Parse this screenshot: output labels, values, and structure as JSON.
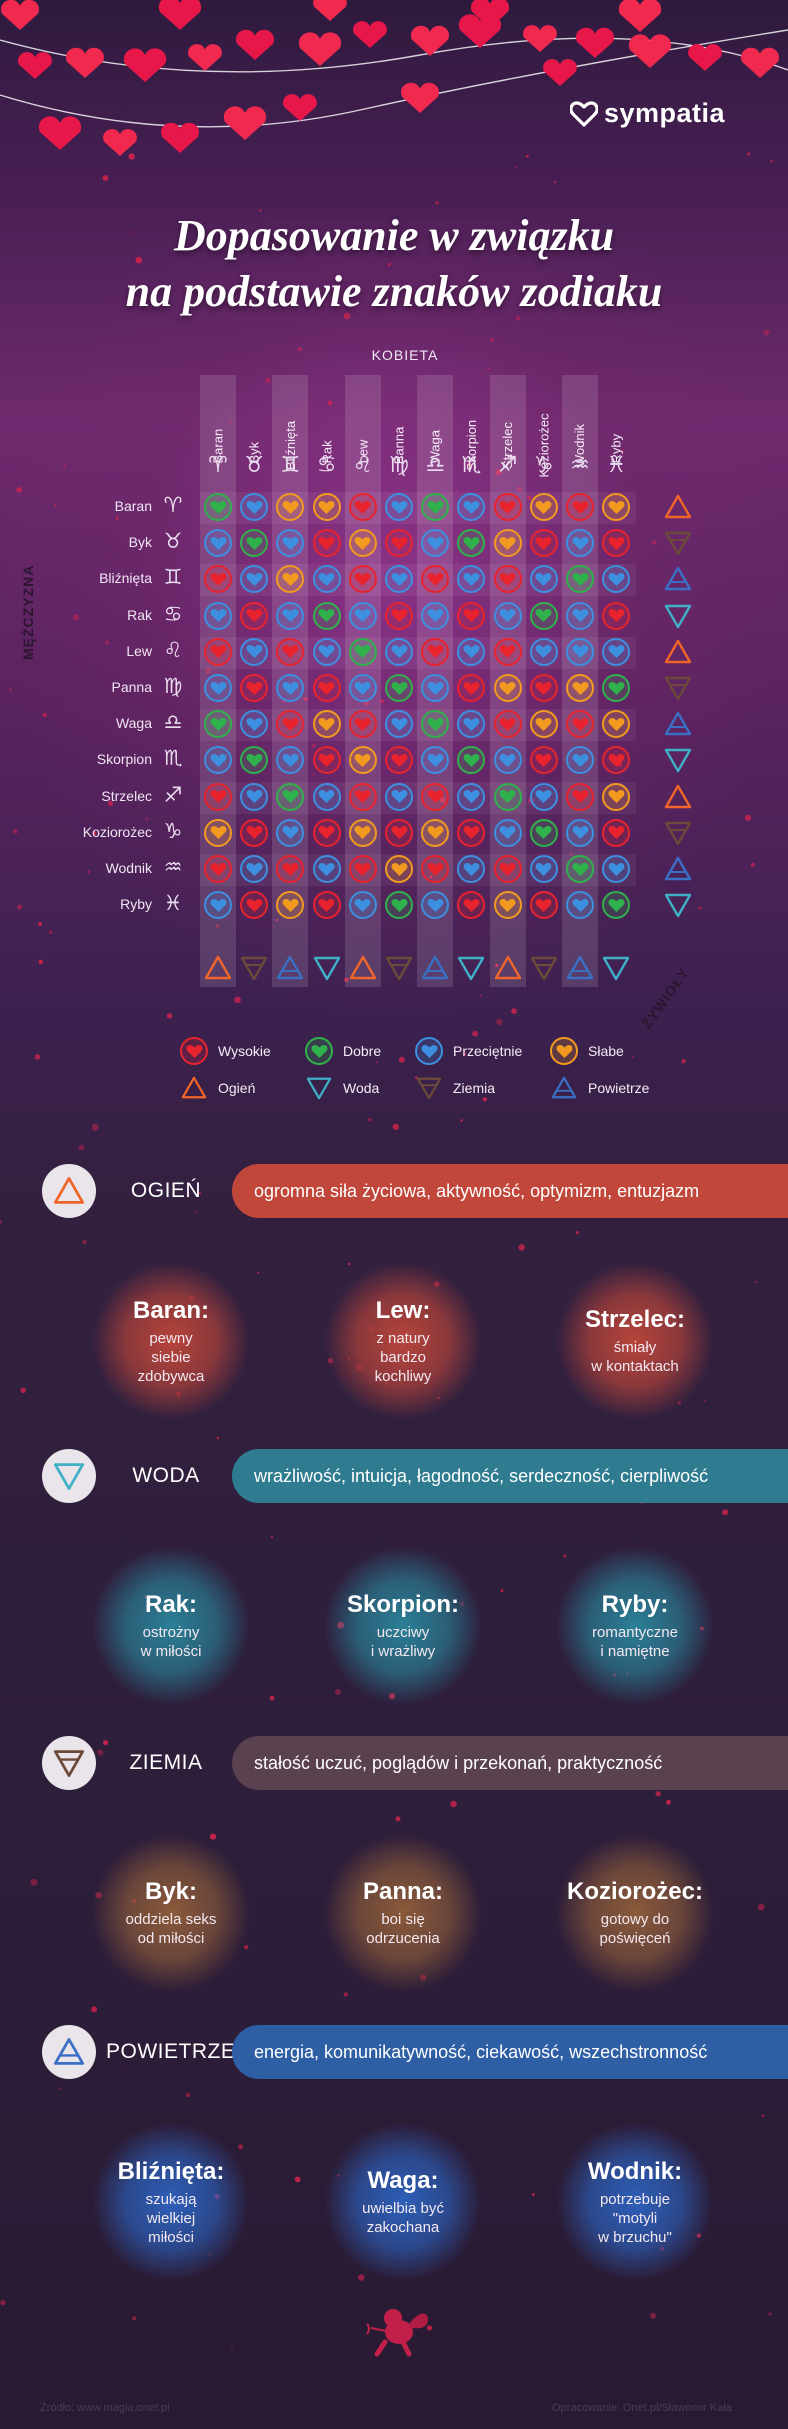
{
  "brand": {
    "name": "sympatia"
  },
  "title": {
    "line1": "Dopasowanie w związku",
    "line2": "na podstawie znaków zodiaku"
  },
  "matrix": {
    "women_label": "KOBIETA",
    "men_label": "MĘŻCZYZNA",
    "elements_label": "ŻYWIOŁY",
    "signs": [
      {
        "name": "Baran",
        "symbol": "♈",
        "element": "ogien"
      },
      {
        "name": "Byk",
        "symbol": "♉",
        "element": "ziemia"
      },
      {
        "name": "Bliźnięta",
        "symbol": "♊",
        "element": "powietrze"
      },
      {
        "name": "Rak",
        "symbol": "♋",
        "element": "woda"
      },
      {
        "name": "Lew",
        "symbol": "♌",
        "element": "ogien"
      },
      {
        "name": "Panna",
        "symbol": "♍",
        "element": "ziemia"
      },
      {
        "name": "Waga",
        "symbol": "♎",
        "element": "powietrze"
      },
      {
        "name": "Skorpion",
        "symbol": "♏",
        "element": "woda"
      },
      {
        "name": "Strzelec",
        "symbol": "♐",
        "element": "ogien"
      },
      {
        "name": "Koziorożec",
        "symbol": "♑",
        "element": "ziemia"
      },
      {
        "name": "Wodnik",
        "symbol": "♒",
        "element": "powietrze"
      },
      {
        "name": "Ryby",
        "symbol": "♓",
        "element": "woda"
      }
    ],
    "grid": [
      [
        "G",
        "B",
        "O",
        "O",
        "R",
        "B",
        "G",
        "B",
        "R",
        "O",
        "R",
        "O"
      ],
      [
        "B",
        "G",
        "B",
        "R",
        "O",
        "R",
        "B",
        "G",
        "O",
        "R",
        "B",
        "R"
      ],
      [
        "R",
        "B",
        "O",
        "B",
        "R",
        "B",
        "R",
        "B",
        "R",
        "B",
        "G",
        "B"
      ],
      [
        "B",
        "R",
        "B",
        "G",
        "B",
        "R",
        "B",
        "R",
        "B",
        "G",
        "B",
        "R"
      ],
      [
        "R",
        "B",
        "R",
        "B",
        "G",
        "B",
        "R",
        "B",
        "R",
        "B",
        "B",
        "B"
      ],
      [
        "B",
        "R",
        "B",
        "R",
        "B",
        "G",
        "B",
        "R",
        "O",
        "R",
        "O",
        "G"
      ],
      [
        "G",
        "B",
        "R",
        "O",
        "R",
        "B",
        "G",
        "B",
        "R",
        "O",
        "R",
        "O"
      ],
      [
        "B",
        "G",
        "B",
        "R",
        "O",
        "R",
        "B",
        "G",
        "B",
        "R",
        "B",
        "R"
      ],
      [
        "R",
        "B",
        "G",
        "B",
        "R",
        "B",
        "R",
        "B",
        "G",
        "B",
        "R",
        "O"
      ],
      [
        "O",
        "R",
        "B",
        "R",
        "O",
        "R",
        "O",
        "R",
        "B",
        "G",
        "B",
        "R"
      ],
      [
        "R",
        "B",
        "R",
        "B",
        "R",
        "O",
        "R",
        "B",
        "R",
        "B",
        "G",
        "B"
      ],
      [
        "B",
        "R",
        "O",
        "R",
        "B",
        "G",
        "B",
        "R",
        "O",
        "R",
        "B",
        "G"
      ]
    ]
  },
  "legend": {
    "levels": [
      {
        "key": "R",
        "label": "Wysokie",
        "color": "#e8232e"
      },
      {
        "key": "G",
        "label": "Dobre",
        "color": "#2fb24b"
      },
      {
        "key": "B",
        "label": "Przeciętnie",
        "color": "#3d8fe0"
      },
      {
        "key": "O",
        "label": "Słabe",
        "color": "#f29a1f"
      }
    ],
    "elements": [
      {
        "key": "ogien",
        "label": "Ogień",
        "color": "#f0652a"
      },
      {
        "key": "woda",
        "label": "Woda",
        "color": "#3fb0c6"
      },
      {
        "key": "ziemia",
        "label": "Ziemia",
        "color": "#6b4a3a"
      },
      {
        "key": "powietrze",
        "label": "Powietrze",
        "color": "#3a6fc4"
      }
    ]
  },
  "sections": [
    {
      "name": "OGIEŃ",
      "element": "ogien",
      "traits": "ogromna siła życiowa, aktywność, optymizm, entuzjazm",
      "bar_color": "#c0473a",
      "glow": "#b7443a",
      "signs": [
        {
          "name": "Baran:",
          "desc": [
            "pewny",
            "siebie",
            "zdobywca"
          ]
        },
        {
          "name": "Lew:",
          "desc": [
            "z natury",
            "bardzo",
            "kochliwy"
          ]
        },
        {
          "name": "Strzelec:",
          "desc": [
            "śmiały",
            "w kontaktach"
          ]
        }
      ]
    },
    {
      "name": "WODA",
      "element": "woda",
      "traits": "wrażliwość, intuicja, łagodność, serdeczność, cierpliwość",
      "bar_color": "#2f7c90",
      "glow": "#2a7f96",
      "signs": [
        {
          "name": "Rak:",
          "desc": [
            "ostrożny",
            "w miłości"
          ]
        },
        {
          "name": "Skorpion:",
          "desc": [
            "uczciwy",
            "i wrażliwy"
          ]
        },
        {
          "name": "Ryby:",
          "desc": [
            "romantyczne",
            "i namiętne"
          ]
        }
      ]
    },
    {
      "name": "ZIEMIA",
      "element": "ziemia",
      "traits": "stałość uczuć, poglądów i przekonań, praktyczność",
      "bar_color": "#5a4150",
      "glow": "#8a5a3a",
      "signs": [
        {
          "name": "Byk:",
          "desc": [
            "oddziela seks",
            "od miłości"
          ]
        },
        {
          "name": "Panna:",
          "desc": [
            "boi się",
            "odrzucenia"
          ]
        },
        {
          "name": "Koziorożec:",
          "desc": [
            "gotowy do",
            "poświęceń"
          ]
        }
      ]
    },
    {
      "name": "POWIETRZE",
      "element": "powietrze",
      "traits": "energia, komunikatywność, ciekawość, wszechstronność",
      "bar_color": "#2e5fa5",
      "glow": "#2d5fb8",
      "signs": [
        {
          "name": "Bliźnięta:",
          "desc": [
            "szukają",
            "wielkiej",
            "miłości"
          ]
        },
        {
          "name": "Waga:",
          "desc": [
            "uwielbia być",
            "zakochana"
          ]
        },
        {
          "name": "Wodnik:",
          "desc": [
            "potrzebuje",
            "\"motyli",
            "w brzuchu\""
          ]
        }
      ]
    }
  ],
  "footer": {
    "source": "Źródło: www.magia.onet.pl",
    "credit": "Opracowanie: Onet.pl/Sławomir Kała"
  }
}
